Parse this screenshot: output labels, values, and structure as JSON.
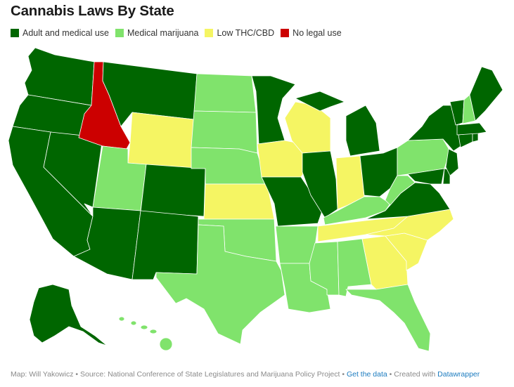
{
  "title": "Cannabis Laws By State",
  "legend": [
    {
      "key": "adult",
      "label": "Adult and medical use",
      "color": "#006600"
    },
    {
      "key": "medical",
      "label": "Medical marijuana",
      "color": "#80e36c"
    },
    {
      "key": "lowthc",
      "label": "Low THC/CBD",
      "color": "#f5f563"
    },
    {
      "key": "none",
      "label": "No legal use",
      "color": "#cc0000"
    }
  ],
  "state_status": {
    "WA": "adult",
    "OR": "adult",
    "CA": "adult",
    "NV": "adult",
    "ID": "none",
    "MT": "adult",
    "WY": "lowthc",
    "UT": "medical",
    "AZ": "adult",
    "CO": "adult",
    "NM": "adult",
    "ND": "medical",
    "SD": "medical",
    "NE": "medical",
    "KS": "lowthc",
    "OK": "medical",
    "TX": "medical",
    "MN": "adult",
    "IA": "lowthc",
    "MO": "adult",
    "AR": "medical",
    "LA": "medical",
    "WI": "lowthc",
    "IL": "adult",
    "MI": "adult",
    "IN": "lowthc",
    "OH": "adult",
    "KY": "medical",
    "TN": "lowthc",
    "MS": "medical",
    "AL": "medical",
    "GA": "lowthc",
    "FL": "medical",
    "SC": "lowthc",
    "NC": "lowthc",
    "VA": "adult",
    "WV": "medical",
    "PA": "medical",
    "NY": "adult",
    "VT": "adult",
    "NH": "medical",
    "ME": "adult",
    "MA": "adult",
    "CT": "adult",
    "RI": "adult",
    "NJ": "adult",
    "DE": "adult",
    "MD": "adult",
    "AK": "adult",
    "HI": "medical"
  },
  "footer": {
    "credit": "Map: Will Yakowicz • Source: National Conference of State Legislatures and Marijuana Policy Project •",
    "get_data": "Get the data",
    "separator": "• Created with",
    "tool": "Datawrapper"
  }
}
